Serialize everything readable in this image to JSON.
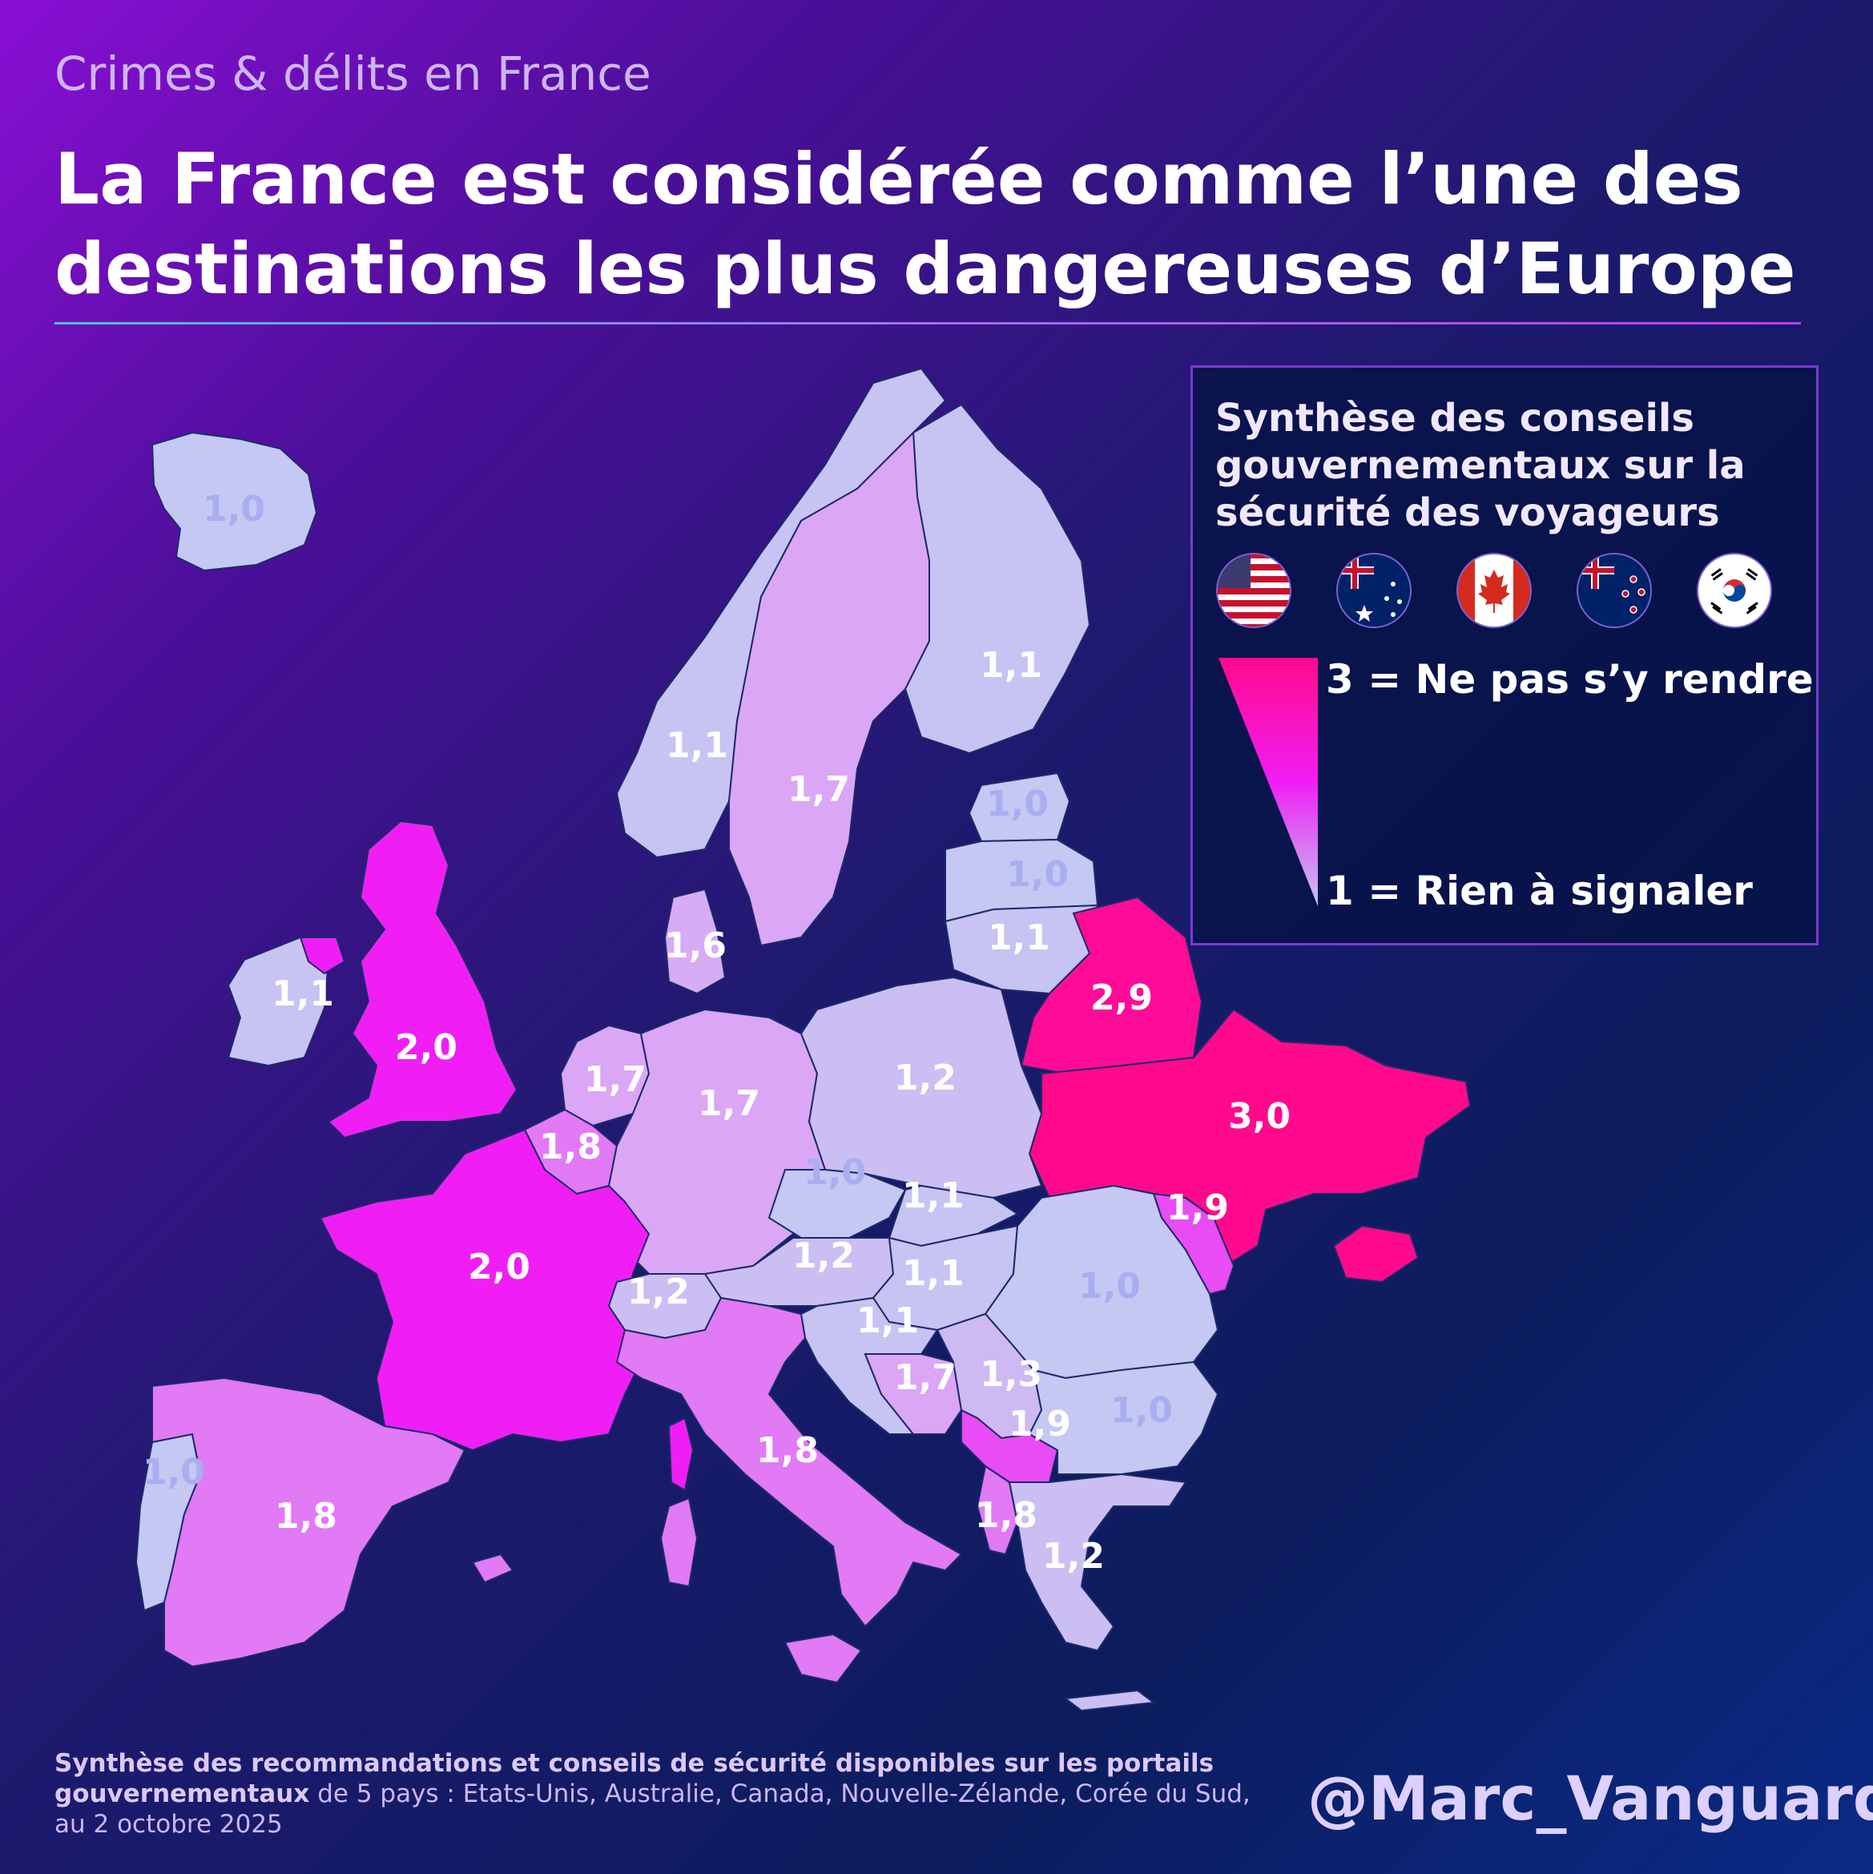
{
  "header": {
    "supertitle": "Crimes & délits en France",
    "title": "La France est considérée comme l’une des destinations les plus dangereuses d’Europe"
  },
  "legend": {
    "title": "Synthèse des conseils gouvernementaux sur la sécurité des voyageurs",
    "flags": [
      "usa-flag",
      "australia-flag",
      "canada-flag",
      "new-zealand-flag",
      "south-korea-flag"
    ],
    "scale_top_label": "3 = Ne pas s’y rendre",
    "scale_bottom_label": "1 = Rien à signaler",
    "scale_colors": [
      "#ff0a8c",
      "#f01ef5",
      "#c4c8f2"
    ]
  },
  "source": {
    "bold": "Synthèse des recommandations et conseils de sécurité disponibles sur les portails gouvernementaux",
    "rest": " de 5 pays : Etats-Unis, Australie, Canada, Nouvelle-Zélande, Corée du Sud, au 2 octobre 2025"
  },
  "handle": "@Marc_Vanguard",
  "map": {
    "regions": [
      {
        "id": "iceland",
        "value": 1.0,
        "label": "1,0"
      },
      {
        "id": "norway",
        "value": 1.1,
        "label": "1,1"
      },
      {
        "id": "sweden",
        "value": 1.7,
        "label": "1,7"
      },
      {
        "id": "finland",
        "value": 1.1,
        "label": "1,1"
      },
      {
        "id": "estonia",
        "value": 1.0,
        "label": "1,0"
      },
      {
        "id": "latvia",
        "value": 1.0,
        "label": "1,0"
      },
      {
        "id": "lithuania",
        "value": 1.1,
        "label": "1,1"
      },
      {
        "id": "belarus",
        "value": 2.9,
        "label": "2,9"
      },
      {
        "id": "ukraine",
        "value": 3.0,
        "label": "3,0"
      },
      {
        "id": "ireland",
        "value": 1.1,
        "label": "1,1"
      },
      {
        "id": "united-kingdom",
        "value": 2.0,
        "label": "2,0"
      },
      {
        "id": "denmark",
        "value": 1.6,
        "label": "1,6"
      },
      {
        "id": "netherlands",
        "value": 1.7,
        "label": "1,7"
      },
      {
        "id": "germany",
        "value": 1.7,
        "label": "1,7"
      },
      {
        "id": "belgium",
        "value": 1.8,
        "label": "1,8"
      },
      {
        "id": "poland",
        "value": 1.2,
        "label": "1,2"
      },
      {
        "id": "czechia",
        "value": 1.0,
        "label": "1,0"
      },
      {
        "id": "slovakia",
        "value": 1.1,
        "label": "1,1"
      },
      {
        "id": "moldova",
        "value": 1.9,
        "label": "1,9"
      },
      {
        "id": "france",
        "value": 2.0,
        "label": "2,0"
      },
      {
        "id": "austria",
        "value": 1.2,
        "label": "1,2"
      },
      {
        "id": "hungary",
        "value": 1.1,
        "label": "1,1"
      },
      {
        "id": "romania",
        "value": 1.0,
        "label": "1,0"
      },
      {
        "id": "switzerland",
        "value": 1.2,
        "label": "1,2"
      },
      {
        "id": "slovenia-croatia",
        "value": 1.1,
        "label": "1,1"
      },
      {
        "id": "bosnia",
        "value": 1.7,
        "label": "1,7"
      },
      {
        "id": "serbia",
        "value": 1.3,
        "label": "1,3"
      },
      {
        "id": "kosovo",
        "value": 1.9,
        "label": "1,9"
      },
      {
        "id": "bulgaria",
        "value": 1.0,
        "label": "1,0"
      },
      {
        "id": "portugal",
        "value": 1.0,
        "label": "1,0"
      },
      {
        "id": "spain",
        "value": 1.8,
        "label": "1,8"
      },
      {
        "id": "italy",
        "value": 1.8,
        "label": "1,8"
      },
      {
        "id": "albania",
        "value": 1.8,
        "label": "1,8"
      },
      {
        "id": "greece",
        "value": 1.2,
        "label": "1,2"
      }
    ]
  }
}
